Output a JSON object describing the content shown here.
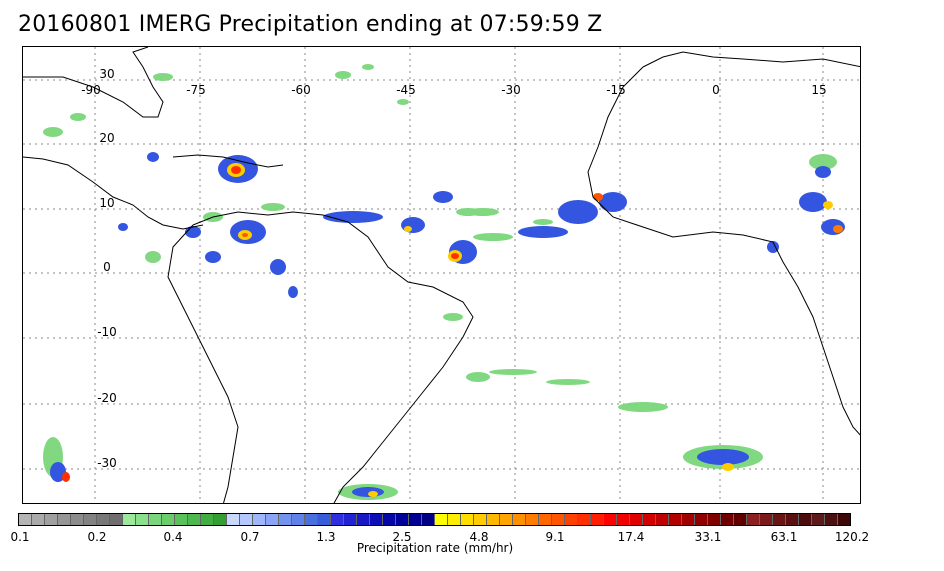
{
  "title": "20160801 IMERG Precipitation ending at 07:59:59 Z",
  "map": {
    "lon_labels": [
      "-90",
      "-75",
      "-60",
      "-45",
      "-30",
      "-15",
      "0",
      "15"
    ],
    "lat_labels": [
      "30",
      "20",
      "10",
      "0",
      "-10",
      "-20",
      "-30"
    ]
  },
  "colorbar": {
    "label": "Precipitation rate (mm/hr)",
    "tick_labels": [
      "0.1",
      "0.2",
      "0.4",
      "0.7",
      "1.3",
      "2.5",
      "4.8",
      "9.1",
      "17.4",
      "33.1",
      "63.1",
      "120.2"
    ],
    "colors": [
      "#b4b4b4",
      "#aaaaaa",
      "#a0a0a0",
      "#969696",
      "#8c8c8c",
      "#828282",
      "#787878",
      "#6e6e6e",
      "#9ee89e",
      "#8be08b",
      "#7ad67a",
      "#6acc6a",
      "#5bc25b",
      "#4db84d",
      "#40ae40",
      "#339f33",
      "#c8d8ff",
      "#b4c8ff",
      "#9fb6fa",
      "#8aa5f5",
      "#7493ef",
      "#5f82e8",
      "#4a70e0",
      "#355ed8",
      "#2f2fe0",
      "#2323d2",
      "#1818c4",
      "#0e0eb6",
      "#0606a8",
      "#00009c",
      "#000090",
      "#000084",
      "#ffff00",
      "#ffee00",
      "#ffdd00",
      "#ffcc00",
      "#ffb800",
      "#ffa400",
      "#ff9000",
      "#ff7c00",
      "#ff6800",
      "#ff5500",
      "#ff4200",
      "#ff2f00",
      "#ff1c00",
      "#ff0000",
      "#f00000",
      "#e00000",
      "#d00000",
      "#c00000",
      "#b00000",
      "#a00000",
      "#900000",
      "#800000",
      "#700000",
      "#600000",
      "#8b2020",
      "#7a1a1a",
      "#6a1515",
      "#5a1010",
      "#4a0c0c",
      "#5c1a1a",
      "#4c1010",
      "#3c0808"
    ]
  }
}
